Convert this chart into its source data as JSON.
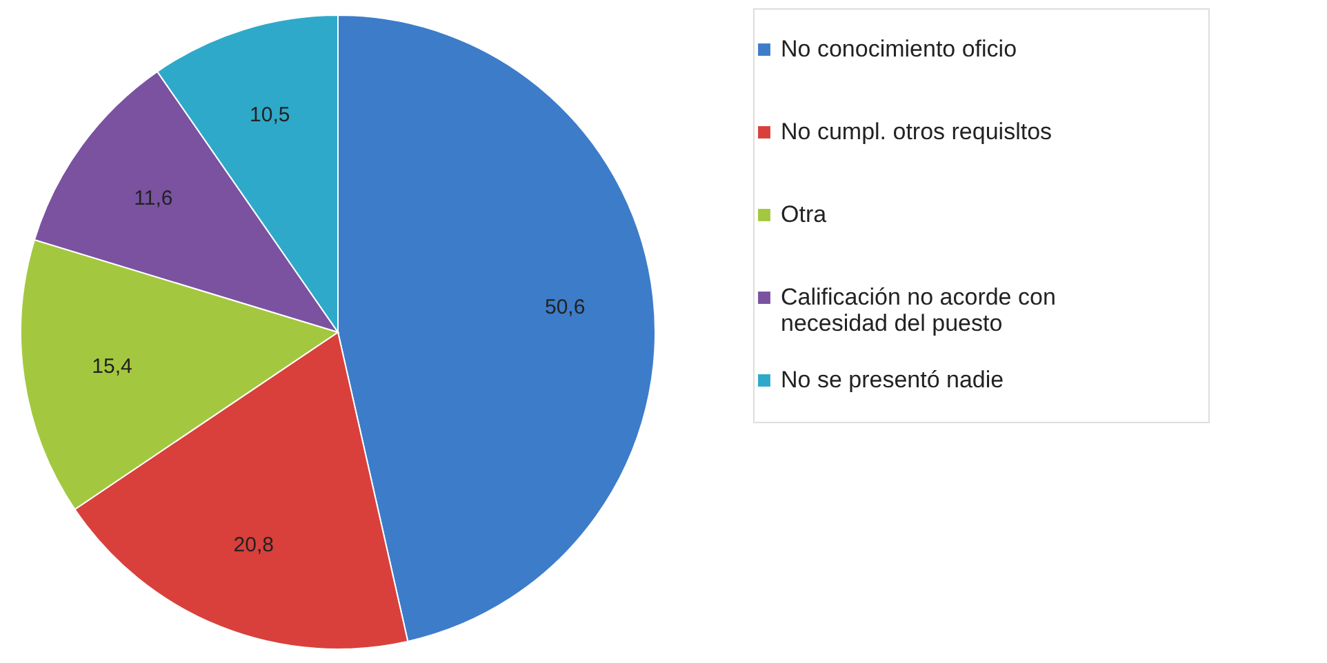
{
  "chart_data": {
    "type": "pie",
    "categories": [
      "No conocimiento oficio",
      "No cumpl. otros requisltos",
      "Otra",
      "Calificación no acorde con necesidad del puesto",
      "No se presentó nadie"
    ],
    "values": [
      50.6,
      20.8,
      15.4,
      11.6,
      10.5
    ],
    "value_labels": [
      "50,6",
      "20,8",
      "15,4",
      "11,6",
      "10,5"
    ],
    "colors": [
      "#3d7cc9",
      "#d9403b",
      "#a3c83f",
      "#7a52a0",
      "#2fa9c9"
    ],
    "legend": "right"
  }
}
